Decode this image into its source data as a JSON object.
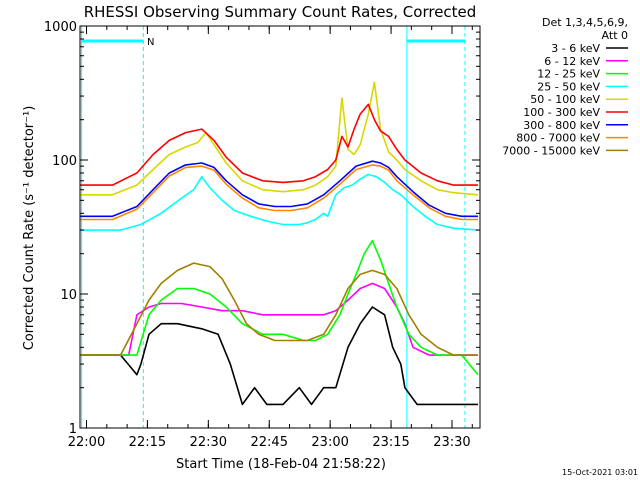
{
  "chart_data": {
    "type": "line",
    "title": "RHESSI Observing Summary Count Rates, Corrected",
    "xlabel": "Start Time (18-Feb-04 21:58:22)",
    "ylabel": "Corrected Count Rate (s⁻¹ detector⁻¹)",
    "y_scale": "log",
    "ylim": [
      1,
      1000
    ],
    "x_unit": "minutes since 21:58:22",
    "xlim": [
      0,
      98.5
    ],
    "x_ticks": [
      {
        "label": "22:00",
        "t": 1.6
      },
      {
        "label": "22:15",
        "t": 16.6
      },
      {
        "label": "22:30",
        "t": 31.6
      },
      {
        "label": "22:45",
        "t": 46.6
      },
      {
        "label": "23:00",
        "t": 61.6
      },
      {
        "label": "23:15",
        "t": 76.6
      },
      {
        "label": "23:30",
        "t": 91.6
      }
    ],
    "y_ticks": [
      {
        "label": "1",
        "v": 1
      },
      {
        "label": "10",
        "v": 10
      },
      {
        "label": "100",
        "v": 100
      },
      {
        "label": "1000",
        "v": 1000
      }
    ],
    "legend_header": [
      "Det 1,3,4,5,6,9,",
      "Att 0"
    ],
    "legend_position": "right",
    "series": [
      {
        "name": "3 - 6 keV",
        "color": "#000000",
        "x": [
          0,
          10,
          14,
          15,
          17,
          20,
          24,
          30,
          34,
          37,
          40,
          43,
          46,
          50,
          54,
          57,
          60,
          63,
          66,
          69,
          72,
          75,
          77,
          79,
          80,
          83,
          86,
          90,
          94,
          98
        ],
        "y": [
          3.5,
          3.5,
          2.5,
          3,
          5,
          6,
          6,
          5.5,
          5,
          3,
          1.5,
          2,
          1.5,
          1.5,
          2,
          1.5,
          2,
          2,
          4,
          6,
          8,
          7,
          4,
          3,
          2,
          1.5,
          1.5,
          1.5,
          1.5,
          1.5
        ]
      },
      {
        "name": "6 - 12 keV",
        "color": "#ff00ff",
        "x": [
          0,
          12,
          14,
          17,
          20,
          25,
          30,
          35,
          40,
          45,
          50,
          55,
          60,
          63,
          66,
          69,
          72,
          75,
          78,
          80,
          82,
          86,
          90,
          94,
          98
        ],
        "y": [
          3.5,
          3.5,
          7,
          8,
          8.5,
          8.5,
          8,
          7.5,
          7.5,
          7,
          7,
          7,
          7,
          7.5,
          9,
          11,
          12,
          11,
          8,
          6,
          4,
          3.5,
          3.5,
          3.5,
          3.5
        ]
      },
      {
        "name": "12 - 25 keV",
        "color": "#00ff00",
        "x": [
          0,
          14,
          17,
          20,
          24,
          28,
          32,
          36,
          40,
          45,
          50,
          55,
          58,
          61,
          64,
          66,
          68,
          70,
          72,
          74,
          76,
          78,
          81,
          84,
          88,
          94,
          98
        ],
        "y": [
          3.5,
          3.5,
          7,
          9,
          11,
          11,
          10,
          8,
          6,
          5,
          5,
          4.5,
          4.5,
          5,
          7,
          10,
          14,
          20,
          25,
          18,
          12,
          8,
          5,
          4,
          3.5,
          3.5,
          2.5
        ]
      },
      {
        "name": "25 - 50 keV",
        "color": "#00ffff",
        "x": [
          0,
          10,
          15,
          20,
          25,
          28,
          30,
          32,
          35,
          38,
          42,
          46,
          50,
          54,
          56,
          58,
          60,
          61,
          63,
          65,
          67,
          69,
          71,
          73,
          75,
          77,
          79,
          82,
          85,
          88,
          92,
          98
        ],
        "y": [
          30,
          30,
          33,
          40,
          52,
          60,
          75,
          62,
          50,
          42,
          38,
          35,
          33,
          33,
          34,
          36,
          40,
          38,
          55,
          62,
          65,
          72,
          78,
          75,
          68,
          60,
          55,
          45,
          38,
          33,
          31,
          30
        ]
      },
      {
        "name": "50 - 100 keV",
        "color": "#d8d800",
        "x": [
          0,
          8,
          14,
          18,
          22,
          26,
          29,
          31,
          33,
          36,
          40,
          45,
          50,
          55,
          58,
          61,
          63,
          64.5,
          66,
          67.5,
          69,
          71,
          72.5,
          74,
          76,
          78,
          80,
          84,
          88,
          92,
          98
        ],
        "y": [
          55,
          55,
          65,
          85,
          110,
          125,
          135,
          160,
          130,
          95,
          70,
          60,
          58,
          60,
          65,
          75,
          90,
          290,
          120,
          110,
          130,
          220,
          380,
          170,
          115,
          100,
          85,
          70,
          60,
          57,
          55
        ]
      },
      {
        "name": "100 - 300 keV",
        "color": "#ff0000",
        "x": [
          0,
          8,
          14,
          18,
          22,
          26,
          30,
          33,
          36,
          40,
          45,
          50,
          55,
          58,
          61,
          63,
          64.5,
          66,
          67.5,
          69,
          71,
          72.5,
          74,
          76,
          78,
          80,
          84,
          88,
          92,
          98
        ],
        "y": [
          65,
          65,
          80,
          110,
          140,
          160,
          170,
          140,
          105,
          80,
          70,
          68,
          70,
          75,
          85,
          100,
          150,
          125,
          170,
          220,
          260,
          200,
          165,
          150,
          120,
          100,
          80,
          70,
          65,
          65
        ]
      },
      {
        "name": "300 - 800 keV",
        "color": "#0000ff",
        "x": [
          0,
          8,
          14,
          18,
          22,
          26,
          30,
          33,
          36,
          40,
          44,
          48,
          52,
          56,
          60,
          64,
          68,
          72,
          74,
          76,
          78,
          82,
          86,
          90,
          94,
          98
        ],
        "y": [
          38,
          38,
          45,
          60,
          80,
          92,
          95,
          88,
          70,
          55,
          47,
          45,
          45,
          47,
          55,
          70,
          90,
          98,
          95,
          88,
          75,
          58,
          46,
          40,
          38,
          38
        ]
      },
      {
        "name": "800 - 7000 keV",
        "color": "#ff8800",
        "x": [
          0,
          8,
          14,
          18,
          22,
          26,
          30,
          33,
          36,
          40,
          44,
          48,
          52,
          56,
          60,
          64,
          68,
          72,
          74,
          76,
          78,
          82,
          86,
          90,
          94,
          98
        ],
        "y": [
          36,
          36,
          43,
          57,
          76,
          88,
          90,
          84,
          66,
          52,
          44,
          42,
          42,
          44,
          52,
          66,
          85,
          92,
          90,
          84,
          70,
          55,
          44,
          38,
          36,
          36
        ]
      },
      {
        "name": "7000 - 15000 keV",
        "color": "#a08000",
        "x": [
          0,
          10,
          14,
          17,
          20,
          24,
          28,
          32,
          35,
          38,
          41,
          44,
          48,
          52,
          56,
          60,
          63,
          66,
          69,
          72,
          75,
          78,
          81,
          84,
          88,
          92,
          98
        ],
        "y": [
          3.5,
          3.5,
          6,
          9,
          12,
          15,
          17,
          16,
          13,
          9,
          6,
          5,
          4.5,
          4.5,
          4.5,
          5,
          7,
          11,
          14,
          15,
          14,
          11,
          7,
          5,
          4,
          3.5,
          3.5
        ]
      }
    ],
    "annotations": {
      "flag_label": "N",
      "footer_date": "15-Oct-2021 03:01"
    }
  }
}
